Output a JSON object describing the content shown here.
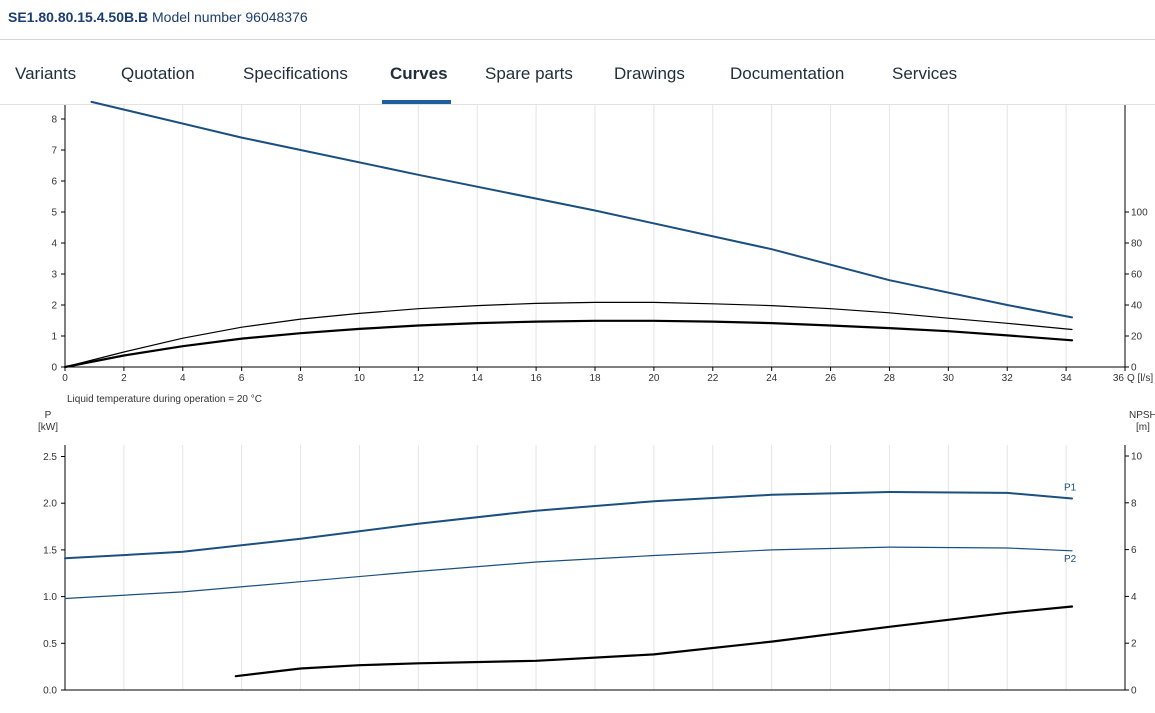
{
  "header": {
    "product_code": "SE1.80.80.15.4.50B.B",
    "model_text": "Model number 96048376"
  },
  "tabs": [
    {
      "label": "Variants",
      "active": false
    },
    {
      "label": "Quotation",
      "active": false
    },
    {
      "label": "Specifications",
      "active": false
    },
    {
      "label": "Curves",
      "active": true
    },
    {
      "label": "Spare parts",
      "active": false
    },
    {
      "label": "Drawings",
      "active": false
    },
    {
      "label": "Documentation",
      "active": false
    },
    {
      "label": "Services",
      "active": false
    }
  ],
  "colors": {
    "accent": "#1f5f9c",
    "series_blue": "#1b4f80",
    "series_black": "#000000",
    "grid": "#e6e6e6"
  },
  "chart_data": [
    {
      "type": "line",
      "xlabel": "Q [l/s]",
      "xlim": [
        0,
        36
      ],
      "x_ticks": [
        0,
        2,
        4,
        6,
        8,
        10,
        12,
        14,
        16,
        18,
        20,
        22,
        24,
        26,
        28,
        30,
        32,
        34,
        36
      ],
      "ylim": [
        0,
        8.5
      ],
      "y_ticks": [
        0,
        1,
        2,
        3,
        4,
        5,
        6,
        7,
        8
      ],
      "y2lim": [
        0,
        113
      ],
      "y2_ticks": [
        0,
        20,
        40,
        60,
        80,
        100
      ],
      "grid": true,
      "note": "Liquid temperature during operation = 20 °C",
      "series": [
        {
          "axis": "left",
          "color": "#1b4f80",
          "width": 2,
          "x": [
            0.9,
            6,
            12,
            18,
            24,
            28,
            32,
            34.2
          ],
          "y": [
            8.55,
            7.4,
            6.2,
            5.05,
            3.8,
            2.8,
            2.0,
            1.6
          ]
        },
        {
          "axis": "right",
          "color": "#000000",
          "width": 1.2,
          "x": [
            0,
            2,
            4,
            6,
            8,
            10,
            12,
            14,
            16,
            18,
            20,
            22,
            24,
            26,
            28,
            30,
            32,
            34.2
          ],
          "y": [
            0,
            9.7,
            18.6,
            25.7,
            30.9,
            34.6,
            37.6,
            39.6,
            41.0,
            41.7,
            41.7,
            40.8,
            39.6,
            37.6,
            35.0,
            31.5,
            28.2,
            24.2
          ]
        },
        {
          "axis": "right",
          "color": "#000000",
          "width": 2.2,
          "x": [
            0,
            2,
            4,
            6,
            8,
            10,
            12,
            14,
            16,
            18,
            20,
            22,
            24,
            26,
            28,
            30,
            32,
            34.2
          ],
          "y": [
            0,
            7.4,
            13.4,
            18.3,
            21.8,
            24.6,
            26.8,
            28.3,
            29.3,
            29.8,
            29.8,
            29.3,
            28.3,
            26.8,
            25.1,
            23.1,
            20.4,
            17.2
          ]
        }
      ]
    },
    {
      "type": "line",
      "xlim": [
        0,
        36
      ],
      "ylabel": "P\n[kW]",
      "ylim": [
        0,
        2.5
      ],
      "y_ticks": [
        "0.0",
        "0.5",
        "1.0",
        "1.5",
        "2.0",
        "2.5"
      ],
      "y2label": "NPSH\n[m]",
      "y2lim": [
        0,
        10
      ],
      "y2_ticks": [
        0,
        2,
        4,
        6,
        8,
        10
      ],
      "grid": true,
      "series": [
        {
          "name": "P1",
          "axis": "left",
          "color": "#1b4f80",
          "width": 2,
          "x": [
            0,
            4,
            8,
            12,
            16,
            20,
            24,
            28,
            32,
            34.2
          ],
          "y": [
            1.41,
            1.48,
            1.62,
            1.78,
            1.92,
            2.02,
            2.09,
            2.12,
            2.11,
            2.05
          ]
        },
        {
          "name": "P2",
          "axis": "left",
          "color": "#1b4f80",
          "width": 1.2,
          "x": [
            0,
            4,
            8,
            12,
            16,
            20,
            24,
            28,
            32,
            34.2
          ],
          "y": [
            0.98,
            1.05,
            1.16,
            1.27,
            1.37,
            1.44,
            1.5,
            1.53,
            1.52,
            1.49
          ]
        },
        {
          "axis": "right",
          "color": "#000000",
          "width": 2.2,
          "x": [
            5.8,
            8,
            10,
            12,
            16,
            20,
            24,
            28,
            32,
            34.2
          ],
          "y": [
            0.59,
            0.92,
            1.06,
            1.14,
            1.25,
            1.52,
            2.07,
            2.7,
            3.3,
            3.57
          ]
        }
      ]
    }
  ]
}
